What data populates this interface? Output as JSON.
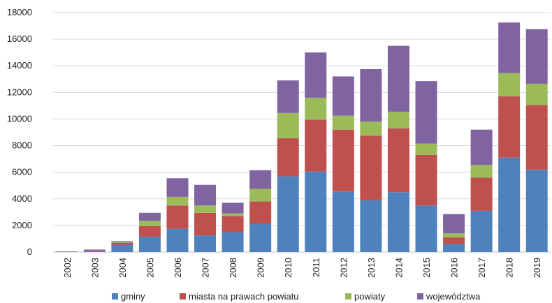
{
  "chart_data": {
    "type": "bar",
    "stacked": true,
    "categories": [
      "2002",
      "2003",
      "2004",
      "2005",
      "2006",
      "2007",
      "2008",
      "2009",
      "2010",
      "2011",
      "2012",
      "2013",
      "2014",
      "2015",
      "2016",
      "2017",
      "2018",
      "2019"
    ],
    "series": [
      {
        "name": "gminy",
        "color": "#4f81bd",
        "values": [
          30,
          120,
          550,
          1150,
          1750,
          1250,
          1500,
          2150,
          5700,
          6050,
          4550,
          3900,
          4500,
          3500,
          600,
          3100,
          7100,
          6200
        ]
      },
      {
        "name": "miasta na prawach powiatu",
        "color": "#c0504d",
        "values": [
          10,
          40,
          150,
          800,
          1750,
          1700,
          1200,
          1650,
          2850,
          3900,
          4650,
          4850,
          4800,
          3800,
          500,
          2500,
          4600,
          4850
        ]
      },
      {
        "name": "powiaty",
        "color": "#9bbb59",
        "values": [
          5,
          20,
          50,
          400,
          650,
          550,
          200,
          950,
          1900,
          1650,
          1050,
          1050,
          1250,
          850,
          300,
          950,
          1750,
          1600
        ]
      },
      {
        "name": "województwa",
        "color": "#8064a2",
        "values": [
          5,
          20,
          70,
          600,
          1400,
          1550,
          800,
          1400,
          2450,
          3400,
          2950,
          3950,
          4950,
          4700,
          1450,
          2650,
          3800,
          4100
        ]
      }
    ],
    "ylim": [
      0,
      18000
    ],
    "yticks": [
      "0",
      "2000",
      "4000",
      "6000",
      "8000",
      "10000",
      "12000",
      "14000",
      "16000",
      "18000"
    ],
    "grid": true,
    "legend": "bottom"
  }
}
